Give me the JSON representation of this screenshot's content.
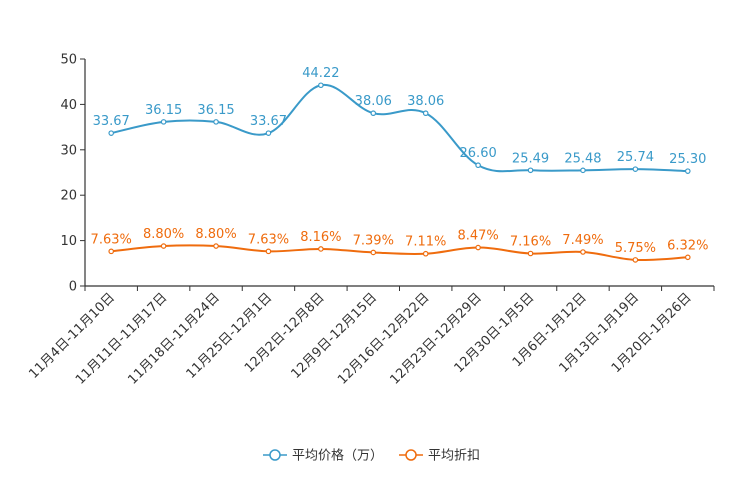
{
  "chart_data": {
    "type": "line",
    "title": "",
    "xlabel": "",
    "ylabel": "",
    "ylim": [
      0,
      50
    ],
    "yticks": [
      0,
      10,
      20,
      30,
      40,
      50
    ],
    "grid": false,
    "legend_position": "bottom-center",
    "categories": [
      "11月4日-11月10日",
      "11月11日-11月17日",
      "11月18日-11月24日",
      "11月25日-12月1日",
      "12月2日-12月8日",
      "12月9日-12月15日",
      "12月16日-12月22日",
      "12月23日-12月29日",
      "12月30日-1月5日",
      "1月6日-1月12日",
      "1月13日-1月19日",
      "1月20日-1月26日"
    ],
    "series": [
      {
        "name": "平均价格（万）",
        "color": "#3a9ac9",
        "values": [
          33.67,
          36.15,
          36.15,
          33.67,
          44.22,
          38.06,
          38.06,
          26.6,
          25.49,
          25.48,
          25.74,
          25.3
        ],
        "labels": [
          "33.67",
          "36.15",
          "36.15",
          "33.67",
          "44.22",
          "38.06",
          "38.06",
          "26.60",
          "25.49",
          "25.48",
          "25.74",
          "25.30"
        ]
      },
      {
        "name": "平均折扣",
        "color": "#ef6c0e",
        "values": [
          7.63,
          8.8,
          8.8,
          7.63,
          8.16,
          7.39,
          7.11,
          8.47,
          7.16,
          7.49,
          5.75,
          6.32
        ],
        "labels": [
          "7.63%",
          "8.80%",
          "8.80%",
          "7.63%",
          "8.16%",
          "7.39%",
          "7.11%",
          "8.47%",
          "7.16%",
          "7.49%",
          "5.75%",
          "6.32%"
        ]
      }
    ]
  }
}
